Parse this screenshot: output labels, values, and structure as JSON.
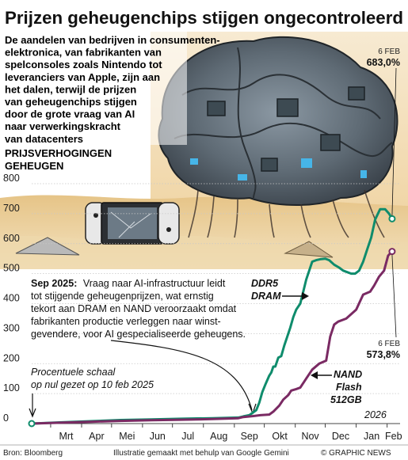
{
  "chart_data": {
    "type": "line",
    "title": "Prijzen geheugenchips stijgen ongecontroleerd",
    "intro_lines": [
      "De aandelen van bedrijven in consumenten-",
      "elektronica, van fabrikanten van",
      "spelconsoles zoals Nintendo tot",
      "leveranciers van Apple, zijn aan",
      "het dalen, terwijl de prijzen",
      "van geheugenchips stijgen",
      "door de grote vraag van AI",
      "naar verwerkingskracht",
      "van datacenters"
    ],
    "ylabel_lines": [
      "PRIJSVERHOGINGEN",
      "GEHEUGEN"
    ],
    "xlabel": "",
    "ylim": [
      0,
      800
    ],
    "yticks": [
      0,
      100,
      200,
      300,
      400,
      500,
      600,
      700,
      800
    ],
    "ytick_labels": [
      "0",
      "100",
      "200",
      "300",
      "400",
      "500",
      "600",
      "700",
      "800"
    ],
    "x_tick_labels": [
      "Mrt",
      "Apr",
      "Mei",
      "Jun",
      "Jul",
      "Aug",
      "Sep",
      "Okt",
      "Nov",
      "Dec",
      "Jan",
      "Feb"
    ],
    "x_ticks": [
      "2025-03-01",
      "2025-04-01",
      "2025-05-01",
      "2025-06-01",
      "2025-07-01",
      "2025-08-01",
      "2025-09-01",
      "2025-10-01",
      "2025-11-01",
      "2025-12-01",
      "2026-01-01",
      "2026-02-01"
    ],
    "xlim": [
      "2025-02-10",
      "2026-02-14"
    ],
    "year_label": "2026",
    "grid": true,
    "series": [
      {
        "name": "DDR5 DRAM",
        "color": "#0f8c6c",
        "end_label": "6 FEB",
        "end_value": "683,0%",
        "x": [
          "2025-02-10",
          "2025-03-10",
          "2025-04-10",
          "2025-05-10",
          "2025-06-10",
          "2025-07-10",
          "2025-08-10",
          "2025-09-05",
          "2025-09-10",
          "2025-09-16",
          "2025-09-19",
          "2025-09-23",
          "2025-09-26",
          "2025-09-29",
          "2025-10-02",
          "2025-10-06",
          "2025-10-08",
          "2025-10-10",
          "2025-10-12",
          "2025-10-15",
          "2025-10-18",
          "2025-10-21",
          "2025-10-24",
          "2025-10-27",
          "2025-10-30",
          "2025-11-02",
          "2025-11-06",
          "2025-11-09",
          "2025-11-12",
          "2025-11-15",
          "2025-11-18",
          "2025-11-22",
          "2025-11-26",
          "2025-12-01",
          "2025-12-05",
          "2025-12-10",
          "2025-12-15",
          "2025-12-19",
          "2025-12-23",
          "2025-12-27",
          "2025-12-31",
          "2026-01-04",
          "2026-01-08",
          "2026-01-12",
          "2026-01-16",
          "2026-01-20",
          "2026-01-25",
          "2026-01-30",
          "2026-02-03",
          "2026-02-06"
        ],
        "y": [
          0,
          4,
          8,
          12,
          14,
          16,
          18,
          20,
          24,
          28,
          35,
          45,
          70,
          105,
          130,
          160,
          170,
          190,
          190,
          220,
          225,
          260,
          290,
          320,
          355,
          380,
          400,
          440,
          480,
          510,
          540,
          545,
          548,
          550,
          545,
          530,
          520,
          510,
          505,
          500,
          500,
          510,
          540,
          580,
          620,
          680,
          715,
          715,
          700,
          683
        ]
      },
      {
        "name": "NAND Flash 512GB",
        "color": "#7a2a63",
        "end_label": "6 FEB",
        "end_value": "573,8%",
        "x": [
          "2025-02-10",
          "2025-03-10",
          "2025-04-10",
          "2025-05-10",
          "2025-06-10",
          "2025-07-10",
          "2025-08-10",
          "2025-09-05",
          "2025-09-10",
          "2025-09-20",
          "2025-09-27",
          "2025-10-06",
          "2025-10-10",
          "2025-10-16",
          "2025-10-20",
          "2025-10-25",
          "2025-10-28",
          "2025-11-02",
          "2025-11-06",
          "2025-11-12",
          "2025-11-18",
          "2025-11-25",
          "2025-12-02",
          "2025-12-06",
          "2025-12-10",
          "2025-12-14",
          "2025-12-22",
          "2026-01-01",
          "2026-01-08",
          "2026-01-15",
          "2026-01-19",
          "2026-01-24",
          "2026-01-29",
          "2026-02-02",
          "2026-02-06"
        ],
        "y": [
          0,
          3,
          6,
          9,
          11,
          13,
          15,
          18,
          22,
          25,
          28,
          30,
          40,
          60,
          80,
          95,
          110,
          115,
          120,
          150,
          180,
          200,
          210,
          290,
          330,
          340,
          350,
          380,
          430,
          440,
          460,
          490,
          510,
          560,
          574
        ]
      }
    ],
    "annotations": {
      "sep_bold": "Sep 2025:",
      "sep_lines": [
        "Vraag naar AI-infrastructuur leidt",
        "tot stijgende geheugenprijzen, wat ernstig",
        "tekort aan DRAM en NAND veroorzaakt omdat",
        "fabrikanten productie verleggen naar winst-",
        "gevendere, voor AI gespecialiseerde geheugens."
      ],
      "scale_lines": [
        "Procentuele schaal",
        "op nul gezet op 10 feb 2025"
      ],
      "ddr_label_lines": [
        "DDR5",
        "DRAM"
      ],
      "nand_label_lines": [
        "NAND",
        "Flash",
        "512GB"
      ]
    }
  },
  "footer": {
    "source": "Bron: Bloomberg",
    "credit": "Illustratie gemaakt met behulp van Google Gemini",
    "brand": "© GRAPHIC NEWS"
  },
  "colors": {
    "ddr": "#0f8c6c",
    "nand": "#7a2a63",
    "grid": "#c8c8c8",
    "sand": "#e9cf9b"
  }
}
